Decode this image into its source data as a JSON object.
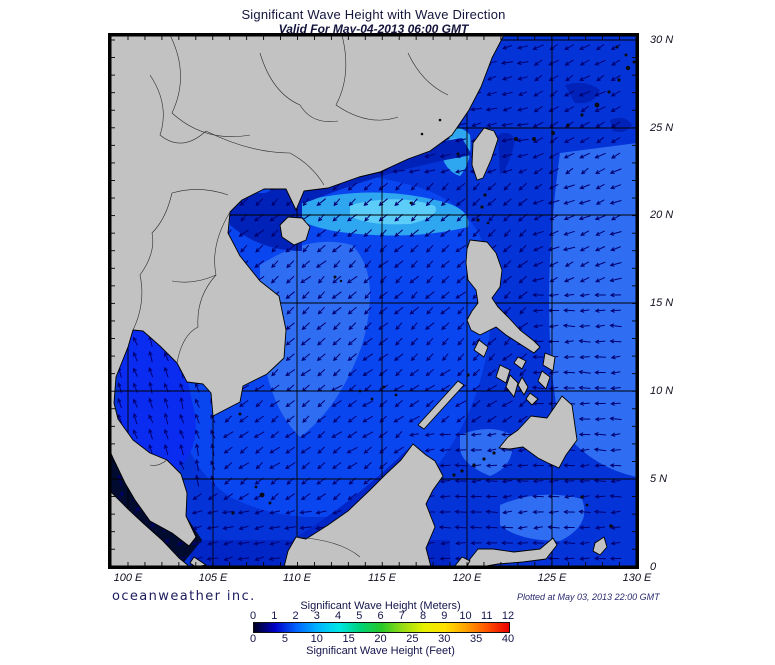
{
  "header": {
    "title": "Significant Wave Height with Wave Direction",
    "subtitle": "Valid For May-04-2013 06:00 GMT"
  },
  "map": {
    "lat_labels": [
      "30 N",
      "25 N",
      "20 N",
      "15 N",
      "10 N",
      "5 N",
      "0"
    ],
    "lon_labels": [
      "100 E",
      "105 E",
      "110 E",
      "115 E",
      "120 E",
      "125 E",
      "130 E"
    ]
  },
  "footer": {
    "brand": "oceanweather inc.",
    "plotted_at": "Plotted at May 03, 2013 22:00 GMT"
  },
  "legend": {
    "meters_title": "Significant Wave Height (Meters)",
    "feet_title": "Significant Wave Height (Feet)",
    "meters_ticks": [
      "0",
      "1",
      "2",
      "3",
      "4",
      "5",
      "6",
      "7",
      "8",
      "9",
      "10",
      "11",
      "12"
    ],
    "feet_ticks": [
      "0",
      "5",
      "10",
      "15",
      "20",
      "25",
      "30",
      "35",
      "40"
    ],
    "gradient_stops": [
      "#000022",
      "#0000C8",
      "#0064FF",
      "#00B4FF",
      "#00E6E6",
      "#00D278",
      "#28C828",
      "#96DC14",
      "#E6F000",
      "#FFE100",
      "#FFA000",
      "#FF5000",
      "#EB0000"
    ]
  },
  "arrows": {
    "color": "#000070",
    "spacing": 15.5,
    "length": 10
  },
  "colors": {
    "ocean_base": "#0433D8",
    "ocean_bright": "#0A46F0",
    "ocean_light": "#2F6EF2",
    "ocean_cyan": "#2FA6F0",
    "ocean_cyan_core": "#5CCCF8",
    "ocean_dark": "#0122B8",
    "java_dark": "#0126C8",
    "ocean_deep": "#010B30",
    "ocean_deepest": "#000818",
    "gulf_bright": "#0A2BF0",
    "land": "#C2C2C2",
    "coast": "#000000",
    "border": "#2a2a2a",
    "islet": "#0b0b14",
    "grid": "#000000",
    "frame": "#000000"
  }
}
